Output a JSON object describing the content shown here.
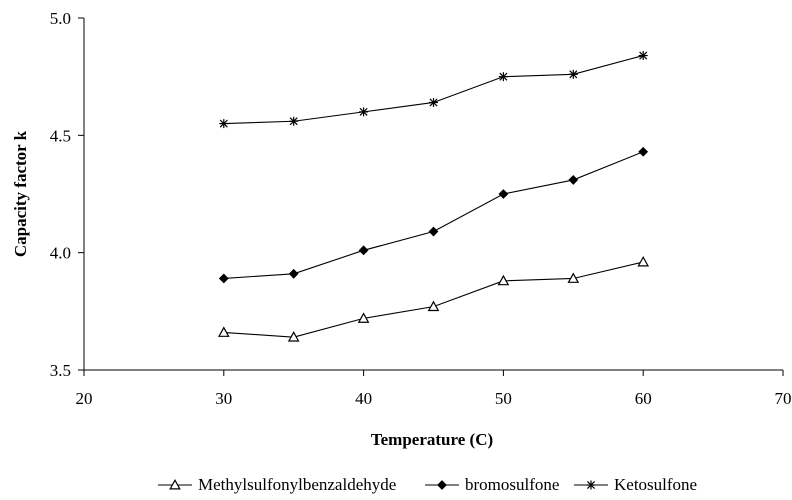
{
  "chart_data": {
    "type": "line",
    "xlabel": "Temperature (C)",
    "ylabel": "Capacity factor k",
    "xlim": [
      20,
      70
    ],
    "ylim": [
      3.5,
      5.0
    ],
    "xticks": [
      "20",
      "30",
      "40",
      "50",
      "60",
      "70"
    ],
    "yticks": [
      "3.5",
      "4.0",
      "4.5",
      "5.0"
    ],
    "x": [
      30,
      35,
      40,
      45,
      50,
      55,
      60
    ],
    "series": [
      {
        "name": "Methylsulfonylbenzaldehyde",
        "marker": "open-triangle",
        "values": [
          3.66,
          3.64,
          3.72,
          3.77,
          3.88,
          3.89,
          3.96
        ]
      },
      {
        "name": "bromosulfone",
        "marker": "filled-diamond",
        "values": [
          3.89,
          3.91,
          4.01,
          4.09,
          4.25,
          4.31,
          4.43
        ]
      },
      {
        "name": "Ketosulfone",
        "marker": "asterisk",
        "values": [
          4.55,
          4.56,
          4.6,
          4.64,
          4.75,
          4.76,
          4.84
        ]
      }
    ],
    "grid": false,
    "legend_position": "bottom",
    "line_color": "#000000"
  }
}
